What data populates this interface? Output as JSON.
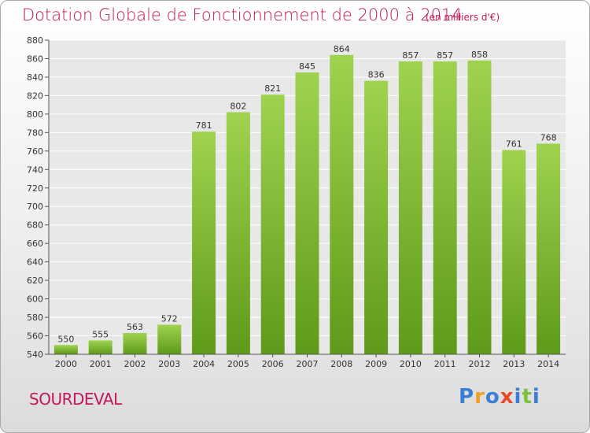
{
  "header": {
    "title": "Dotation Globale de Fonctionnement de 2000 à 2014",
    "unit": "(en milliers d'€)"
  },
  "footer": {
    "commune": "SOURDEVAL",
    "logo_text": "Proxiti"
  },
  "colors": {
    "title": "#c2185b",
    "bar_top": "#9fd34f",
    "bar_bottom": "#5f9a1a",
    "grid": "#ffffff",
    "plot_bg": "#e8e8e8",
    "logo_letters": [
      "#3b7fd4",
      "#f0a020",
      "#3b7fd4",
      "#e84a2a",
      "#3b7fd4",
      "#7cc242"
    ]
  },
  "chart_data": {
    "type": "bar",
    "title": "Dotation Globale de Fonctionnement de 2000 à 2014",
    "subtitle": "(en milliers d'€)",
    "categories": [
      "2000",
      "2001",
      "2002",
      "2003",
      "2004",
      "2005",
      "2006",
      "2007",
      "2008",
      "2009",
      "2010",
      "2011",
      "2012",
      "2013",
      "2014"
    ],
    "values": [
      550,
      555,
      563,
      572,
      781,
      802,
      821,
      845,
      864,
      836,
      857,
      857,
      858,
      761,
      768
    ],
    "ylim": [
      540,
      880
    ],
    "yticks": [
      540,
      560,
      580,
      600,
      620,
      640,
      660,
      680,
      700,
      720,
      740,
      760,
      780,
      800,
      820,
      840,
      860,
      880
    ],
    "grid": true,
    "data_labels": true
  }
}
